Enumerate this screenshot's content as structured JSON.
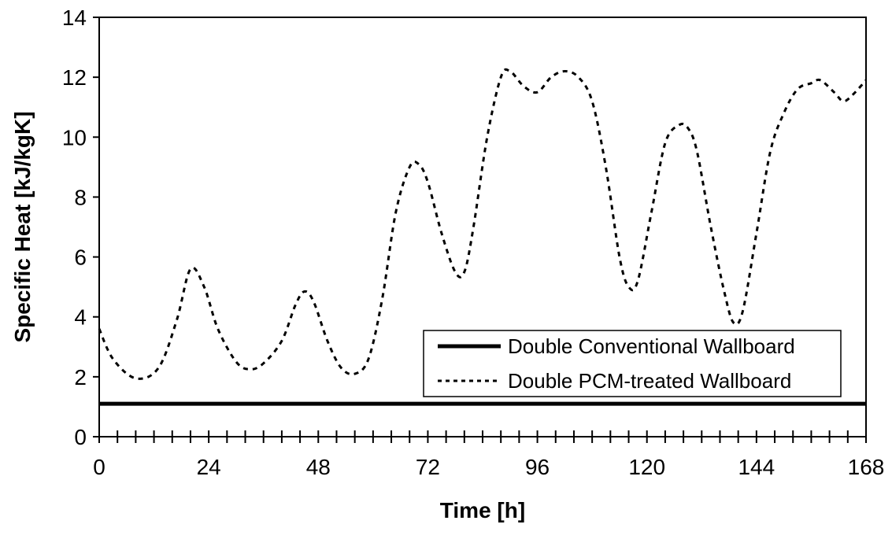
{
  "chart_data": {
    "type": "line",
    "title": "",
    "xlabel": "Time [h]",
    "ylabel": "Specific Heat [kJ/kgK]",
    "xlim": [
      0,
      168
    ],
    "ylim": [
      0,
      14
    ],
    "xticks": [
      0,
      24,
      48,
      72,
      96,
      120,
      144,
      168
    ],
    "xtick_labels": [
      "0",
      "24",
      "48",
      "72",
      "96",
      "120",
      "144",
      "168"
    ],
    "x_minor_step": 4,
    "yticks": [
      0,
      2,
      4,
      6,
      8,
      10,
      12,
      14
    ],
    "ytick_labels": [
      "0",
      "2",
      "4",
      "6",
      "8",
      "10",
      "12",
      "14"
    ],
    "grid": false,
    "legend_position": "bottom-right",
    "series": [
      {
        "name": "Double Conventional Wallboard",
        "style": "solid",
        "color": "#000000",
        "x": [
          0,
          168
        ],
        "y": [
          1.1,
          1.1
        ]
      },
      {
        "name": "Double PCM-treated Wallboard",
        "style": "dotted",
        "color": "#000000",
        "x": [
          0,
          3,
          8,
          13,
          17,
          20,
          23,
          26,
          30,
          33,
          36,
          40,
          43,
          45,
          47,
          50,
          53,
          56,
          59,
          62,
          65,
          68,
          70,
          72,
          75,
          78,
          80,
          82,
          85,
          88,
          90,
          93,
          96,
          99,
          102,
          105,
          108,
          111,
          114,
          116,
          118,
          121,
          124,
          127,
          129,
          131,
          134,
          137,
          139,
          141,
          144,
          147,
          150,
          153,
          156,
          158,
          161,
          163,
          165,
          168
        ],
        "y": [
          3.6,
          2.6,
          1.95,
          2.3,
          3.9,
          5.6,
          5.0,
          3.6,
          2.5,
          2.25,
          2.45,
          3.2,
          4.4,
          4.85,
          4.5,
          3.2,
          2.3,
          2.1,
          2.6,
          4.6,
          7.5,
          9.0,
          9.1,
          8.5,
          6.8,
          5.5,
          5.5,
          7.0,
          10.0,
          12.0,
          12.2,
          11.7,
          11.5,
          12.0,
          12.2,
          12.0,
          11.2,
          9.0,
          6.0,
          5.0,
          5.2,
          7.5,
          9.8,
          10.4,
          10.3,
          9.5,
          7.0,
          4.8,
          3.8,
          4.2,
          6.8,
          9.5,
          10.8,
          11.6,
          11.8,
          11.9,
          11.5,
          11.2,
          11.4,
          11.9
        ]
      }
    ]
  }
}
